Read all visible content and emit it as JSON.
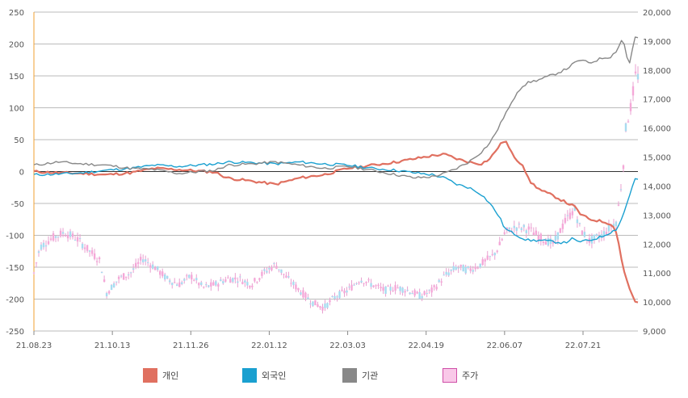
{
  "chart_data": {
    "type": "line",
    "title": "",
    "left_axis": {
      "min": -250,
      "max": 250,
      "ticks": [
        "250",
        "200",
        "150",
        "100",
        "50",
        "0",
        "-50",
        "-100",
        "-150",
        "-200",
        "-250"
      ]
    },
    "right_axis": {
      "min": 9000,
      "max": 20000,
      "ticks": [
        "20,000",
        "19,000",
        "18,000",
        "17,000",
        "16,000",
        "15,000",
        "14,000",
        "13,000",
        "12,000",
        "11,000",
        "10,000",
        "9,000"
      ]
    },
    "x_ticks": [
      "21.08.23",
      "21.10.13",
      "21.11.26",
      "22.01.12",
      "22.03.03",
      "22.04.19",
      "22.06.07",
      "22.07.21"
    ],
    "series": [
      {
        "name": "개인",
        "color": "#e07060",
        "axis": "left",
        "points": [
          [
            0,
            0
          ],
          [
            0.04,
            -2
          ],
          [
            0.08,
            -3
          ],
          [
            0.12,
            -5
          ],
          [
            0.16,
            -2
          ],
          [
            0.2,
            5
          ],
          [
            0.24,
            3
          ],
          [
            0.3,
            -1
          ],
          [
            0.32,
            -10
          ],
          [
            0.36,
            -15
          ],
          [
            0.4,
            -20
          ],
          [
            0.44,
            -10
          ],
          [
            0.48,
            -5
          ],
          [
            0.52,
            5
          ],
          [
            0.56,
            10
          ],
          [
            0.6,
            15
          ],
          [
            0.63,
            20
          ],
          [
            0.66,
            25
          ],
          [
            0.68,
            27
          ],
          [
            0.7,
            20
          ],
          [
            0.72,
            15
          ],
          [
            0.74,
            12
          ],
          [
            0.755,
            20
          ],
          [
            0.77,
            40
          ],
          [
            0.78,
            50
          ],
          [
            0.79,
            30
          ],
          [
            0.8,
            18
          ],
          [
            0.81,
            10
          ],
          [
            0.82,
            -15
          ],
          [
            0.84,
            -30
          ],
          [
            0.86,
            -38
          ],
          [
            0.88,
            -48
          ],
          [
            0.895,
            -55
          ],
          [
            0.905,
            -67
          ],
          [
            0.92,
            -75
          ],
          [
            0.94,
            -78
          ],
          [
            0.955,
            -82
          ],
          [
            0.965,
            -95
          ],
          [
            0.975,
            -150
          ],
          [
            0.985,
            -180
          ],
          [
            0.995,
            -205
          ]
        ]
      },
      {
        "name": "외국인",
        "color": "#1aa0d0",
        "axis": "left",
        "points": [
          [
            0,
            -5
          ],
          [
            0.04,
            -4
          ],
          [
            0.08,
            -2
          ],
          [
            0.12,
            2
          ],
          [
            0.16,
            5
          ],
          [
            0.2,
            10
          ],
          [
            0.24,
            8
          ],
          [
            0.3,
            12
          ],
          [
            0.32,
            15
          ],
          [
            0.36,
            14
          ],
          [
            0.4,
            12
          ],
          [
            0.44,
            15
          ],
          [
            0.48,
            12
          ],
          [
            0.52,
            10
          ],
          [
            0.56,
            5
          ],
          [
            0.6,
            2
          ],
          [
            0.63,
            -2
          ],
          [
            0.66,
            -5
          ],
          [
            0.68,
            -10
          ],
          [
            0.7,
            -20
          ],
          [
            0.72,
            -25
          ],
          [
            0.74,
            -35
          ],
          [
            0.755,
            -50
          ],
          [
            0.77,
            -70
          ],
          [
            0.78,
            -90
          ],
          [
            0.8,
            -100
          ],
          [
            0.81,
            -105
          ],
          [
            0.82,
            -108
          ],
          [
            0.84,
            -108
          ],
          [
            0.86,
            -110
          ],
          [
            0.88,
            -112
          ],
          [
            0.89,
            -105
          ],
          [
            0.9,
            -110
          ],
          [
            0.92,
            -108
          ],
          [
            0.94,
            -102
          ],
          [
            0.955,
            -95
          ],
          [
            0.965,
            -90
          ],
          [
            0.975,
            -70
          ],
          [
            0.985,
            -40
          ],
          [
            0.995,
            -12
          ]
        ]
      },
      {
        "name": "기관",
        "color": "#888888",
        "axis": "left",
        "points": [
          [
            0,
            10
          ],
          [
            0.04,
            15
          ],
          [
            0.08,
            12
          ],
          [
            0.12,
            10
          ],
          [
            0.16,
            5
          ],
          [
            0.2,
            3
          ],
          [
            0.24,
            -3
          ],
          [
            0.3,
            2
          ],
          [
            0.32,
            10
          ],
          [
            0.36,
            12
          ],
          [
            0.4,
            15
          ],
          [
            0.44,
            10
          ],
          [
            0.48,
            5
          ],
          [
            0.52,
            8
          ],
          [
            0.56,
            2
          ],
          [
            0.6,
            -5
          ],
          [
            0.63,
            -10
          ],
          [
            0.66,
            -8
          ],
          [
            0.68,
            -3
          ],
          [
            0.7,
            5
          ],
          [
            0.72,
            15
          ],
          [
            0.74,
            30
          ],
          [
            0.755,
            45
          ],
          [
            0.77,
            70
          ],
          [
            0.78,
            90
          ],
          [
            0.79,
            105
          ],
          [
            0.8,
            125
          ],
          [
            0.81,
            135
          ],
          [
            0.82,
            140
          ],
          [
            0.84,
            145
          ],
          [
            0.86,
            152
          ],
          [
            0.88,
            160
          ],
          [
            0.895,
            170
          ],
          [
            0.905,
            175
          ],
          [
            0.92,
            170
          ],
          [
            0.94,
            178
          ],
          [
            0.955,
            180
          ],
          [
            0.965,
            190
          ],
          [
            0.975,
            210
          ],
          [
            0.985,
            165
          ],
          [
            0.995,
            210
          ]
        ]
      },
      {
        "name": "주가",
        "color": "#f5a8d8",
        "axis": "right",
        "style": "candlestick",
        "points": [
          [
            0,
            11000
          ],
          [
            0.01,
            11900
          ],
          [
            0.03,
            12200
          ],
          [
            0.05,
            12400
          ],
          [
            0.07,
            12200
          ],
          [
            0.09,
            11800
          ],
          [
            0.11,
            11400
          ],
          [
            0.12,
            10300
          ],
          [
            0.14,
            10800
          ],
          [
            0.16,
            11000
          ],
          [
            0.18,
            11500
          ],
          [
            0.2,
            11200
          ],
          [
            0.22,
            10800
          ],
          [
            0.24,
            10600
          ],
          [
            0.26,
            10900
          ],
          [
            0.28,
            10500
          ],
          [
            0.3,
            10600
          ],
          [
            0.32,
            10800
          ],
          [
            0.34,
            10800
          ],
          [
            0.36,
            10600
          ],
          [
            0.38,
            11000
          ],
          [
            0.4,
            11300
          ],
          [
            0.42,
            10800
          ],
          [
            0.44,
            10400
          ],
          [
            0.46,
            10000
          ],
          [
            0.48,
            9800
          ],
          [
            0.5,
            10200
          ],
          [
            0.52,
            10400
          ],
          [
            0.54,
            10800
          ],
          [
            0.56,
            10600
          ],
          [
            0.58,
            10400
          ],
          [
            0.6,
            10500
          ],
          [
            0.62,
            10400
          ],
          [
            0.64,
            10200
          ],
          [
            0.66,
            10400
          ],
          [
            0.68,
            10900
          ],
          [
            0.7,
            11200
          ],
          [
            0.72,
            11100
          ],
          [
            0.74,
            11300
          ],
          [
            0.76,
            11600
          ],
          [
            0.77,
            11900
          ],
          [
            0.78,
            12400
          ],
          [
            0.8,
            12600
          ],
          [
            0.82,
            12500
          ],
          [
            0.84,
            12200
          ],
          [
            0.86,
            12000
          ],
          [
            0.88,
            12800
          ],
          [
            0.895,
            13200
          ],
          [
            0.905,
            12500
          ],
          [
            0.92,
            12100
          ],
          [
            0.94,
            12300
          ],
          [
            0.955,
            12600
          ],
          [
            0.965,
            12800
          ],
          [
            0.975,
            14500
          ],
          [
            0.98,
            16000
          ],
          [
            0.99,
            16900
          ],
          [
            0.995,
            17800
          ]
        ]
      }
    ]
  },
  "legend": [
    {
      "label": "개인",
      "color": "#e07060",
      "border": "#e07060"
    },
    {
      "label": "외국인",
      "color": "#1aa0d0",
      "border": "#1aa0d0"
    },
    {
      "label": "기관",
      "color": "#888888",
      "border": "#888888"
    },
    {
      "label": "주가",
      "color": "#f9c8e8",
      "border": "#d050a8"
    }
  ]
}
